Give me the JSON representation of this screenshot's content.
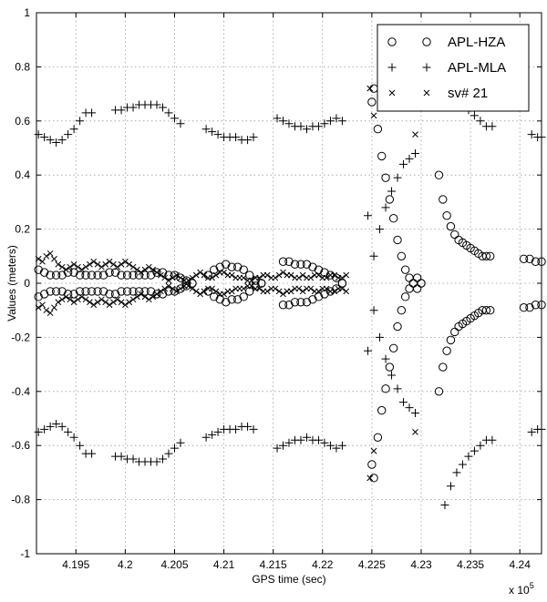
{
  "chart_data": {
    "type": "scatter",
    "title": "",
    "xlabel": "GPS time (sec)",
    "ylabel": "Values (meters)",
    "x_multiplier_label": "x 10",
    "x_multiplier_exponent": "5",
    "xlim": [
      4.191,
      4.2422
    ],
    "ylim": [
      -1,
      1
    ],
    "xticks": [
      4.195,
      4.2,
      4.205,
      4.21,
      4.215,
      4.22,
      4.225,
      4.23,
      4.235,
      4.24
    ],
    "xtick_labels": [
      "4.195",
      "4.2",
      "4.205",
      "4.21",
      "4.215",
      "4.22",
      "4.225",
      "4.23",
      "4.235",
      "4.24"
    ],
    "yticks": [
      -1,
      -0.8,
      -0.6,
      -0.4,
      -0.2,
      0,
      0.2,
      0.4,
      0.6,
      0.8,
      1
    ],
    "ytick_labels": [
      "-1",
      "-0.8",
      "-0.6",
      "-0.4",
      "-0.2",
      "0",
      "0.2",
      "0.4",
      "0.6",
      "0.8",
      "1"
    ],
    "grid": true,
    "legend_position": "top-right",
    "series": [
      {
        "name": "APL-HZA",
        "marker": "circle",
        "mirror": true,
        "x": [
          4.1912,
          4.1918,
          4.1924,
          4.193,
          4.1936,
          4.1942,
          4.1948,
          4.1954,
          4.196,
          4.1966,
          4.1972,
          4.1978,
          4.1984,
          4.199,
          4.1996,
          4.2002,
          4.2008,
          4.2014,
          4.202,
          4.2026,
          4.2032,
          4.2038,
          4.2044,
          4.205,
          4.2056,
          4.2062,
          4.2068,
          4.2084,
          4.209,
          4.2096,
          4.2102,
          4.2108,
          4.2114,
          4.212,
          4.2126,
          4.2132,
          4.2138,
          4.216,
          4.2166,
          4.2172,
          4.2178,
          4.2184,
          4.219,
          4.2196,
          4.2202,
          4.2208,
          4.2214,
          4.222,
          4.225,
          4.2252,
          4.2256,
          4.226,
          4.2264,
          4.2268,
          4.2272,
          4.2276,
          4.228,
          4.2284,
          4.2288,
          4.2292,
          4.2296,
          4.23,
          4.2318,
          4.2322,
          4.2326,
          4.233,
          4.2334,
          4.2338,
          4.2342,
          4.2346,
          4.235,
          4.2354,
          4.2358,
          4.2362,
          4.2366,
          4.237,
          4.2404,
          4.241,
          4.2416,
          4.2422
        ],
        "y": [
          0.05,
          0.04,
          0.03,
          0.03,
          0.03,
          0.04,
          0.04,
          0.03,
          0.03,
          0.03,
          0.03,
          0.03,
          0.04,
          0.04,
          0.03,
          0.03,
          0.03,
          0.03,
          0.03,
          0.03,
          0.04,
          0.04,
          0.03,
          0.03,
          0.02,
          0.01,
          0.0,
          0.03,
          0.05,
          0.06,
          0.07,
          0.06,
          0.06,
          0.05,
          0.03,
          0.01,
          0.0,
          0.08,
          0.08,
          0.07,
          0.07,
          0.07,
          0.06,
          0.05,
          0.04,
          0.03,
          0.02,
          0.0,
          0.67,
          0.72,
          0.57,
          0.47,
          0.39,
          0.31,
          0.24,
          0.16,
          0.1,
          0.05,
          0.02,
          0.0,
          0.02,
          0.0,
          0.4,
          0.31,
          0.25,
          0.21,
          0.18,
          0.16,
          0.15,
          0.14,
          0.13,
          0.12,
          0.11,
          0.1,
          0.1,
          0.1,
          0.09,
          0.09,
          0.08,
          0.08
        ]
      },
      {
        "name": "APL-MLA",
        "marker": "plus",
        "mirror": true,
        "x": [
          4.1912,
          4.1918,
          4.1924,
          4.193,
          4.1936,
          4.1942,
          4.1948,
          4.1954,
          4.196,
          4.1966,
          4.199,
          4.1996,
          4.2002,
          4.2008,
          4.2014,
          4.202,
          4.2026,
          4.2032,
          4.2038,
          4.2044,
          4.205,
          4.2056,
          4.2082,
          4.2088,
          4.2094,
          4.21,
          4.2106,
          4.2112,
          4.2118,
          4.2124,
          4.213,
          4.2154,
          4.216,
          4.2166,
          4.2172,
          4.2178,
          4.2184,
          4.219,
          4.2196,
          4.2202,
          4.2208,
          4.2214,
          4.222,
          4.2246,
          4.2252,
          4.2258,
          4.2264,
          4.227,
          4.2276,
          4.2282,
          4.2288,
          4.2294,
          4.2324,
          4.233,
          4.2336,
          4.2342,
          4.2348,
          4.2354,
          4.236,
          4.2366,
          4.2372,
          4.2412,
          4.2418,
          4.2422
        ],
        "y": [
          0.55,
          0.54,
          0.53,
          0.52,
          0.53,
          0.55,
          0.57,
          0.6,
          0.63,
          0.63,
          0.64,
          0.64,
          0.65,
          0.65,
          0.66,
          0.66,
          0.66,
          0.66,
          0.65,
          0.63,
          0.61,
          0.59,
          0.57,
          0.56,
          0.55,
          0.54,
          0.54,
          0.54,
          0.53,
          0.53,
          0.54,
          0.61,
          0.6,
          0.59,
          0.58,
          0.58,
          0.57,
          0.58,
          0.58,
          0.59,
          0.6,
          0.61,
          0.6,
          0.25,
          0.1,
          0.2,
          0.28,
          0.34,
          0.39,
          0.44,
          0.46,
          0.48,
          0.82,
          0.75,
          0.7,
          0.67,
          0.64,
          0.62,
          0.6,
          0.58,
          0.58,
          0.55,
          0.54,
          0.54
        ]
      },
      {
        "name": "sv# 21",
        "marker": "x",
        "mirror": true,
        "x": [
          4.1912,
          4.1916,
          4.192,
          4.1924,
          4.1928,
          4.1932,
          4.1936,
          4.194,
          4.1944,
          4.1948,
          4.1952,
          4.1956,
          4.196,
          4.1964,
          4.1968,
          4.1972,
          4.1976,
          4.198,
          4.1984,
          4.1988,
          4.1992,
          4.1996,
          4.2,
          4.2004,
          4.2008,
          4.2012,
          4.2016,
          4.202,
          4.2024,
          4.2028,
          4.2032,
          4.2036,
          4.204,
          4.2044,
          4.2048,
          4.2052,
          4.2056,
          4.206,
          4.2064,
          4.2068,
          4.2072,
          4.2076,
          4.208,
          4.2084,
          4.2088,
          4.2092,
          4.2096,
          4.21,
          4.2104,
          4.2108,
          4.2112,
          4.2116,
          4.212,
          4.2124,
          4.2128,
          4.2132,
          4.2136,
          4.214,
          4.2144,
          4.2148,
          4.2152,
          4.2156,
          4.216,
          4.2164,
          4.2168,
          4.2172,
          4.2176,
          4.218,
          4.2184,
          4.2188,
          4.2192,
          4.2196,
          4.22,
          4.2204,
          4.2208,
          4.2212,
          4.2216,
          4.222,
          4.2224,
          4.2248,
          4.2252,
          4.2294
        ],
        "y": [
          0.09,
          0.08,
          0.1,
          0.11,
          0.09,
          0.07,
          0.06,
          0.05,
          0.06,
          0.07,
          0.06,
          0.05,
          0.06,
          0.07,
          0.08,
          0.07,
          0.06,
          0.07,
          0.08,
          0.07,
          0.06,
          0.07,
          0.08,
          0.07,
          0.06,
          0.05,
          0.04,
          0.05,
          0.06,
          0.05,
          0.04,
          0.03,
          0.02,
          0.01,
          0.02,
          0.03,
          0.02,
          0.01,
          0.01,
          0.02,
          0.03,
          0.04,
          0.03,
          0.02,
          0.02,
          0.03,
          0.04,
          0.04,
          0.03,
          0.03,
          0.02,
          0.02,
          0.02,
          0.01,
          0.01,
          0.02,
          0.02,
          0.03,
          0.03,
          0.02,
          0.02,
          0.03,
          0.04,
          0.03,
          0.03,
          0.02,
          0.02,
          0.03,
          0.02,
          0.02,
          0.03,
          0.03,
          0.02,
          0.02,
          0.03,
          0.03,
          0.02,
          0.02,
          0.03,
          0.72,
          0.62,
          0.55
        ]
      }
    ]
  }
}
